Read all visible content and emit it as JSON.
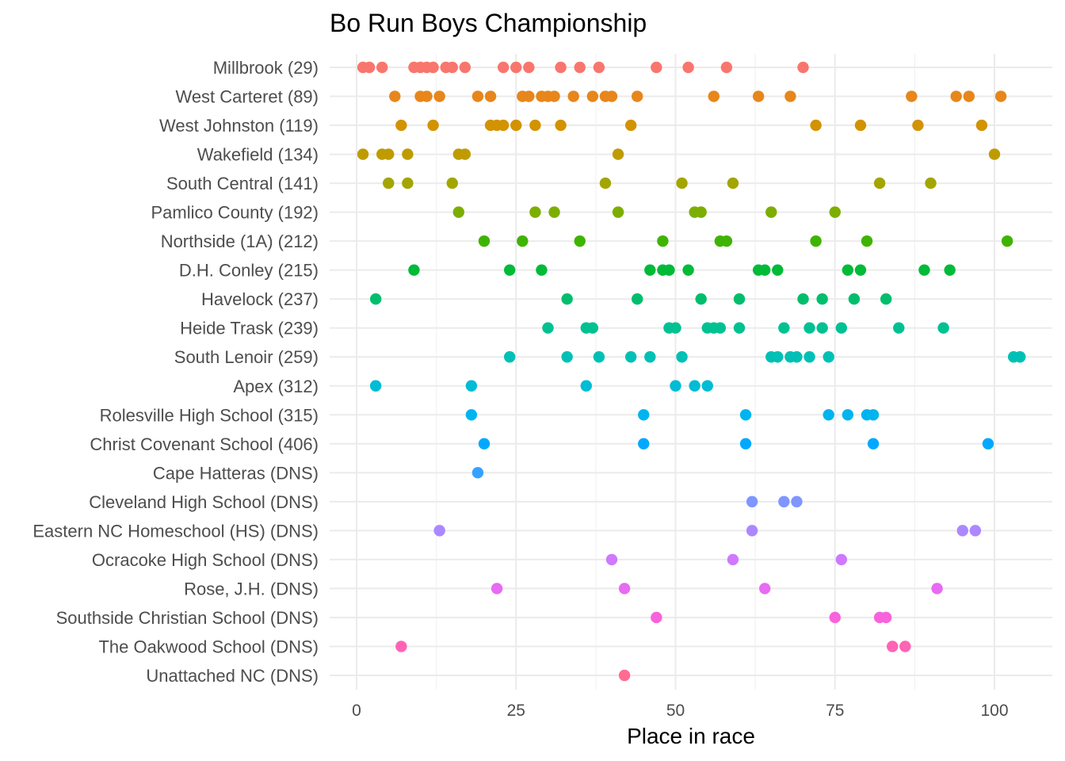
{
  "chart_data": {
    "type": "scatter",
    "title": "Bo Run Boys Championship",
    "xlabel": "Place in race",
    "ylabel": "",
    "xlim": [
      -0.5,
      104.5
    ],
    "xticks": [
      0,
      25,
      50,
      75,
      100
    ],
    "grid": true,
    "legend": "none",
    "series": [
      {
        "name": "Millbrook (29)",
        "color": "#F8766D",
        "x": [
          1,
          2,
          4,
          9,
          10,
          11,
          12,
          14,
          15,
          17,
          23,
          25,
          27,
          32,
          35,
          38,
          47,
          52,
          58,
          70
        ]
      },
      {
        "name": "West Carteret (89)",
        "color": "#E7861B",
        "x": [
          6,
          10,
          11,
          13,
          19,
          21,
          26,
          27,
          29,
          30,
          31,
          34,
          37,
          39,
          40,
          44,
          56,
          63,
          68,
          87,
          94,
          96,
          101
        ]
      },
      {
        "name": "West Johnston (119)",
        "color": "#D39200",
        "x": [
          7,
          12,
          21,
          22,
          23,
          25,
          28,
          32,
          43,
          72,
          79,
          88,
          98
        ]
      },
      {
        "name": "Wakefield (134)",
        "color": "#BE9C00",
        "x": [
          1,
          4,
          5,
          8,
          16,
          17,
          41,
          100
        ]
      },
      {
        "name": "South Central (141)",
        "color": "#A3A500",
        "x": [
          5,
          8,
          15,
          39,
          51,
          59,
          82,
          90
        ]
      },
      {
        "name": "Pamlico County (192)",
        "color": "#7CAE00",
        "x": [
          16,
          28,
          31,
          41,
          53,
          54,
          65,
          75
        ]
      },
      {
        "name": "Northside (1A) (212)",
        "color": "#3EB400",
        "x": [
          20,
          26,
          35,
          48,
          57,
          58,
          72,
          80,
          102
        ]
      },
      {
        "name": "D.H. Conley (215)",
        "color": "#00BA38",
        "x": [
          9,
          24,
          29,
          46,
          48,
          49,
          52,
          63,
          64,
          66,
          77,
          79,
          89,
          93
        ]
      },
      {
        "name": "Havelock (237)",
        "color": "#00BE6C",
        "x": [
          3,
          33,
          44,
          54,
          60,
          70,
          73,
          78,
          83
        ]
      },
      {
        "name": "Heide Trask (239)",
        "color": "#00C192",
        "x": [
          30,
          36,
          37,
          49,
          50,
          55,
          56,
          57,
          60,
          67,
          71,
          73,
          76,
          85,
          92
        ]
      },
      {
        "name": "South Lenoir (259)",
        "color": "#00C0B5",
        "x": [
          24,
          33,
          38,
          43,
          46,
          51,
          65,
          66,
          68,
          69,
          71,
          74,
          103,
          104
        ]
      },
      {
        "name": "Apex (312)",
        "color": "#00BCD5",
        "x": [
          3,
          18,
          36,
          50,
          53,
          55
        ]
      },
      {
        "name": "Rolesville High School (315)",
        "color": "#00B4EF",
        "x": [
          18,
          45,
          61,
          74,
          77,
          80,
          81
        ]
      },
      {
        "name": "Christ Covenant School (406)",
        "color": "#00A9FF",
        "x": [
          20,
          45,
          61,
          81,
          99
        ]
      },
      {
        "name": "Cape Hatteras (DNS)",
        "color": "#35A2FF",
        "x": [
          19
        ]
      },
      {
        "name": "Cleveland High School (DNS)",
        "color": "#7F96FF",
        "x": [
          62,
          67,
          69
        ]
      },
      {
        "name": "Eastern NC Homeschool (HS) (DNS)",
        "color": "#AC88FF",
        "x": [
          13,
          62,
          95,
          97
        ]
      },
      {
        "name": "Ocracoke High School (DNS)",
        "color": "#CE79FF",
        "x": [
          40,
          59,
          76
        ]
      },
      {
        "name": "Rose, J.H. (DNS)",
        "color": "#E76BF3",
        "x": [
          22,
          42,
          64,
          91
        ]
      },
      {
        "name": "Southside Christian School (DNS)",
        "color": "#F862DC",
        "x": [
          47,
          75,
          82,
          83
        ]
      },
      {
        "name": "The Oakwood School (DNS)",
        "color": "#FF63B6",
        "x": [
          7,
          84,
          86
        ]
      },
      {
        "name": "Unattached NC (DNS)",
        "color": "#FF6C91",
        "x": [
          42
        ]
      }
    ]
  }
}
